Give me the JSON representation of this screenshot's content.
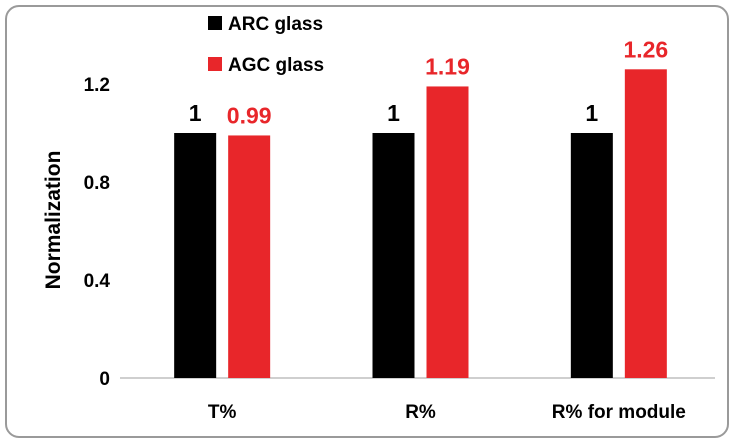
{
  "chart_data": {
    "type": "bar",
    "title": "",
    "xlabel": "",
    "ylabel": "Normalization",
    "ylim": [
      0,
      1.2
    ],
    "yticks": [
      0,
      0.4,
      0.8,
      1.2
    ],
    "ytick_labels": [
      "0",
      "0.4",
      "0.8",
      "1.2"
    ],
    "categories": [
      "T%",
      "R%",
      "R% for module"
    ],
    "series": [
      {
        "name": "ARC glass",
        "values": [
          1,
          1,
          1
        ],
        "labels": [
          "1",
          "1",
          "1"
        ],
        "color": "#000000"
      },
      {
        "name": "AGC glass",
        "values": [
          0.99,
          1.19,
          1.26
        ],
        "labels": [
          "0.99",
          "1.19",
          "1.26"
        ],
        "color": "#e8262a"
      }
    ],
    "legend_position": "top-left",
    "grid": false
  }
}
